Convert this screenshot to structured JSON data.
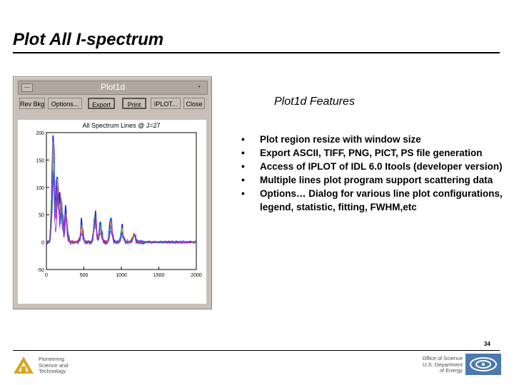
{
  "slide": {
    "title": "Plot All I-spectrum",
    "page_number": "34"
  },
  "window": {
    "title": "Plot1d",
    "menu_glyph": "—",
    "min_glyph": "•",
    "toolbar": {
      "buttons": [
        {
          "label": "Rev Bkg"
        },
        {
          "label": "Options..."
        },
        {
          "label": "Export"
        },
        {
          "label": "Print"
        },
        {
          "label": "IPLOT..."
        },
        {
          "label": "Close"
        }
      ]
    }
  },
  "chart_data": {
    "type": "line",
    "title": "All Spectrum Lines @ J=27",
    "xlim": [
      0,
      2000
    ],
    "ylim": [
      -50,
      200
    ],
    "xticks": [
      0,
      500,
      1000,
      1500,
      2000
    ],
    "yticks": [
      -50,
      0,
      50,
      100,
      150,
      200
    ],
    "series_colors": [
      "#0000ff",
      "#00c0ff",
      "#00c000",
      "#ffe000",
      "#ff4000",
      "#ff00ff",
      "#00a0a0",
      "#8000ff"
    ],
    "peaks": [
      {
        "x": 90,
        "height": 175
      },
      {
        "x": 150,
        "height": 120
      },
      {
        "x": 200,
        "height": 85
      },
      {
        "x": 260,
        "height": 60
      },
      {
        "x": 470,
        "height": 35
      },
      {
        "x": 650,
        "height": 60
      },
      {
        "x": 720,
        "height": 35
      },
      {
        "x": 860,
        "height": 40
      },
      {
        "x": 1010,
        "height": 25
      },
      {
        "x": 1170,
        "height": 20
      }
    ],
    "grid": false,
    "legend": "none"
  },
  "features": {
    "title": "Plot1d Features",
    "items": [
      "Plot region resize with window size",
      "Export ASCII, TIFF, PNG, PICT, PS file generation",
      "Access of IPLOT of IDL 6.0  Itools (developer version)",
      "Multiple lines plot program support scattering data",
      "Options… Dialog for various line plot configurations, legend, statistic, fitting, FWHM,etc"
    ],
    "bullet": "•"
  },
  "footer": {
    "left_lines": [
      "Pioneering",
      "Science and",
      "Technology"
    ],
    "right_lines": [
      "Office of Science",
      "U.S. Department",
      "of Energy"
    ]
  }
}
